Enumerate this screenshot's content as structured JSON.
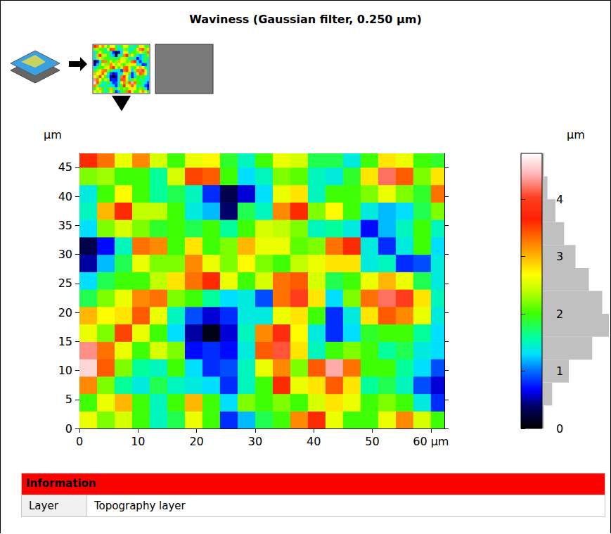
{
  "chart_data": {
    "type": "heatmap",
    "title": "Waviness (Gaussian filter, 0.250 µm)",
    "y_label": "µm",
    "x": [
      1.5,
      4.5,
      7.5,
      10.5,
      13.5,
      16.5,
      19.5,
      22.5,
      25.5,
      28.5,
      31.5,
      34.5,
      37.5,
      40.5,
      43.5,
      46.5,
      49.5,
      52.5,
      55.5,
      58.5,
      61.5
    ],
    "y": [
      1.5,
      4.5,
      7.5,
      10.5,
      13.5,
      16.5,
      19.5,
      22.5,
      25.5,
      28.5,
      31.5,
      34.5,
      37.5,
      40.5,
      43.5,
      46.5
    ],
    "z": [
      [
        2.6,
        2.2,
        2.5,
        2.0,
        1.5,
        1.8,
        2.6,
        2.0,
        0.8,
        1.2,
        1.8,
        2.0,
        3.2,
        3.6,
        2.6,
        2.0,
        2.0,
        2.6,
        3.2,
        2.5,
        2.0
      ],
      [
        2.0,
        2.6,
        3.0,
        2.0,
        1.5,
        2.0,
        3.0,
        2.0,
        1.3,
        2.2,
        2.0,
        2.2,
        2.0,
        2.5,
        2.8,
        2.6,
        2.0,
        2.2,
        2.0,
        1.4,
        0.8
      ],
      [
        3.2,
        2.2,
        1.6,
        1.4,
        1.8,
        1.5,
        1.4,
        1.3,
        0.8,
        1.5,
        2.0,
        3.6,
        2.6,
        2.8,
        3.4,
        2.8,
        1.6,
        1.8,
        1.5,
        0.9,
        0.6
      ],
      [
        4.6,
        3.4,
        2.2,
        1.6,
        1.5,
        2.0,
        1.3,
        0.8,
        0.9,
        1.5,
        2.6,
        3.2,
        2.2,
        3.4,
        4.4,
        3.3,
        2.0,
        2.0,
        1.6,
        1.3,
        0.9
      ],
      [
        4.3,
        3.3,
        2.6,
        2.0,
        2.5,
        2.2,
        0.7,
        0.8,
        0.7,
        1.4,
        3.4,
        4.1,
        2.8,
        1.5,
        2.0,
        2.2,
        2.0,
        1.6,
        1.8,
        1.4,
        1.3
      ],
      [
        2.6,
        2.2,
        3.5,
        2.6,
        2.0,
        1.3,
        0.5,
        0.1,
        0.6,
        1.5,
        3.2,
        3.8,
        2.7,
        1.4,
        0.8,
        1.3,
        1.9,
        2.0,
        2.0,
        1.6,
        1.3
      ],
      [
        3.0,
        2.7,
        2.8,
        3.4,
        2.6,
        1.5,
        0.9,
        0.6,
        0.8,
        1.4,
        1.4,
        2.6,
        2.8,
        2.0,
        0.8,
        1.4,
        2.8,
        3.4,
        3.2,
        2.6,
        1.4
      ],
      [
        1.8,
        2.2,
        2.6,
        3.2,
        3.3,
        2.2,
        2.0,
        1.6,
        1.3,
        1.4,
        0.9,
        3.3,
        4.0,
        2.8,
        1.3,
        2.2,
        3.3,
        4.2,
        4.0,
        2.8,
        1.5
      ],
      [
        1.3,
        1.8,
        2.0,
        2.0,
        2.4,
        2.8,
        3.3,
        3.6,
        2.6,
        2.0,
        2.5,
        3.3,
        3.4,
        2.5,
        1.8,
        2.0,
        2.6,
        3.0,
        2.6,
        1.8,
        1.4
      ],
      [
        0.5,
        1.2,
        1.8,
        2.6,
        2.2,
        2.2,
        3.2,
        2.6,
        2.2,
        2.7,
        2.2,
        2.0,
        2.4,
        2.6,
        2.8,
        2.8,
        1.4,
        1.5,
        0.8,
        0.9,
        1.4
      ],
      [
        0.3,
        0.7,
        1.5,
        3.3,
        3.2,
        2.0,
        2.8,
        2.0,
        2.2,
        3.0,
        2.6,
        2.6,
        2.1,
        2.2,
        3.3,
        3.6,
        1.4,
        0.8,
        1.4,
        2.0,
        1.3
      ],
      [
        1.3,
        2.2,
        2.5,
        2.2,
        1.9,
        2.0,
        1.8,
        2.0,
        1.6,
        2.0,
        2.5,
        2.4,
        2.2,
        1.5,
        1.6,
        1.4,
        0.7,
        1.2,
        1.5,
        2.0,
        1.5
      ],
      [
        1.5,
        3.0,
        3.6,
        2.4,
        2.4,
        2.0,
        1.4,
        1.2,
        0.4,
        1.8,
        1.5,
        3.2,
        3.6,
        2.2,
        2.7,
        2.0,
        1.4,
        1.2,
        1.3,
        1.8,
        2.2
      ],
      [
        1.4,
        2.0,
        2.7,
        2.0,
        1.6,
        1.8,
        1.5,
        0.8,
        0.3,
        0.6,
        1.3,
        2.6,
        2.8,
        1.5,
        2.0,
        2.0,
        2.2,
        2.6,
        2.2,
        1.9,
        3.3
      ],
      [
        2.2,
        2.3,
        2.0,
        2.0,
        1.6,
        2.5,
        3.5,
        3.4,
        2.0,
        1.3,
        1.5,
        2.2,
        2.1,
        1.5,
        1.4,
        1.9,
        2.8,
        4.2,
        3.4,
        2.2,
        2.8
      ],
      [
        3.6,
        3.3,
        2.6,
        3.2,
        2.5,
        2.0,
        2.6,
        2.7,
        1.9,
        1.5,
        2.0,
        2.6,
        2.5,
        1.8,
        1.8,
        1.4,
        2.0,
        2.8,
        2.6,
        2.0,
        1.9
      ]
    ],
    "xlim": [
      0,
      62.3
    ],
    "ylim": [
      0,
      47.4
    ],
    "xticks": [
      0,
      10,
      20,
      30,
      40,
      50,
      {
        "value": 60,
        "label": "60 µm"
      }
    ],
    "yticks": [
      0,
      5,
      10,
      15,
      20,
      25,
      30,
      35,
      40,
      45
    ],
    "grid": false,
    "colorbar": {
      "label": "µm",
      "range": [
        0,
        4.8
      ],
      "ticks": [
        0,
        1,
        2,
        3,
        4
      ]
    },
    "histogram": {
      "bins": [
        0,
        0.4,
        0.8,
        1.2,
        1.6,
        2.0,
        2.4,
        2.8,
        3.2,
        3.6,
        4.0,
        4.4,
        4.8
      ],
      "counts": [
        0.03,
        0.15,
        0.4,
        0.75,
        1.0,
        0.9,
        0.7,
        0.5,
        0.33,
        0.2,
        0.08,
        0.03
      ]
    }
  },
  "information": {
    "header": "Information",
    "rows": [
      [
        "Layer",
        "Topography layer"
      ]
    ]
  }
}
